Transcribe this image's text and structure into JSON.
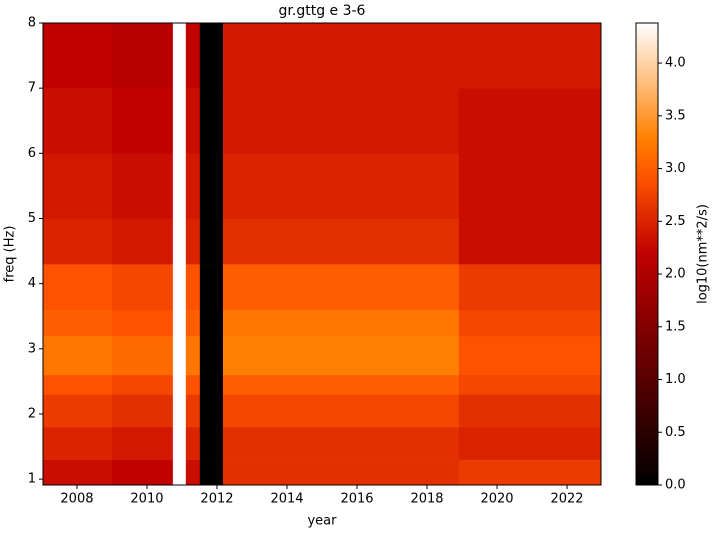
{
  "chart_data": {
    "type": "heatmap",
    "title": "gr.gttg e 3-6",
    "x_label": "year",
    "y_label": "freq (Hz)",
    "colorbar_label": "log10(nm**2/s)",
    "colormap": "gist_heat",
    "x": [
      2007.03,
      2009,
      2010.74,
      2011.11,
      2011.51,
      2012.17,
      2018.91,
      2022.97
    ],
    "y": [
      0.91,
      1.3,
      1.8,
      2.3,
      2.6,
      3.2,
      3.6,
      4.3,
      5,
      6,
      7,
      8
    ],
    "z": [
      [
        2.3,
        2.2,
        4.38,
        2.3,
        0,
        2.6,
        2.7
      ],
      [
        2.5,
        2.4,
        4.38,
        2.5,
        0,
        2.6,
        2.5
      ],
      [
        2.7,
        2.6,
        4.38,
        2.7,
        0,
        2.8,
        2.6
      ],
      [
        2.9,
        2.8,
        4.38,
        2.9,
        0,
        3.0,
        2.8
      ],
      [
        3.2,
        3.1,
        4.38,
        3.2,
        0,
        3.3,
        2.9
      ],
      [
        3.0,
        2.9,
        4.38,
        3.0,
        0,
        3.2,
        2.8
      ],
      [
        2.9,
        2.8,
        4.38,
        2.9,
        0,
        3.0,
        2.7
      ],
      [
        2.5,
        2.4,
        4.38,
        2.5,
        0,
        2.6,
        2.3
      ],
      [
        2.4,
        2.3,
        4.38,
        2.4,
        0,
        2.5,
        2.3
      ],
      [
        2.3,
        2.2,
        4.38,
        2.3,
        0,
        2.4,
        2.3
      ],
      [
        2.2,
        2.1,
        4.38,
        2.2,
        0,
        2.4,
        2.4
      ]
    ],
    "xlim": [
      2007.03,
      2022.97
    ],
    "ylim": [
      0.91,
      8
    ],
    "clim": [
      0,
      4.38
    ],
    "xticks": [
      2008,
      2010,
      2012,
      2014,
      2016,
      2018,
      2020,
      2022
    ],
    "yticks": [
      1,
      2,
      3,
      4,
      5,
      6,
      7,
      8
    ],
    "cticks": [
      {
        "value": 0,
        "label": "0.0"
      },
      {
        "value": 0.5,
        "label": "0.5"
      },
      {
        "value": 1,
        "label": "1.0"
      },
      {
        "value": 1.5,
        "label": "1.5"
      },
      {
        "value": 2,
        "label": "2.0"
      },
      {
        "value": 2.5,
        "label": "2.5"
      },
      {
        "value": 3,
        "label": "3.0"
      },
      {
        "value": 3.5,
        "label": "3.5"
      },
      {
        "value": 4,
        "label": "4.0"
      }
    ]
  }
}
